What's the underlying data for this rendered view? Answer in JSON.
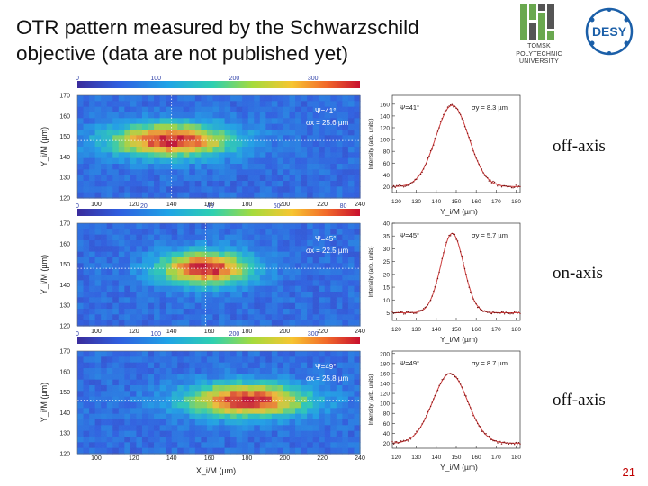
{
  "slide": {
    "title": "OTR pattern measured by the Schwarzschild objective (data are not published yet)",
    "slide_number": "21",
    "logos": {
      "tpu_lines": [
        "TOMSK",
        "POLYTECHNIC",
        "UNIVERSITY"
      ],
      "desy_text": "DESY"
    },
    "row_labels": [
      "off-axis",
      "on-axis",
      "off-axis"
    ]
  },
  "colors": {
    "accent_red": "#c00000",
    "profile_line": "#d04040",
    "profile_points": "#7a1010",
    "grid_dotted": "#ffffff",
    "tpu_green": "#6aa84f",
    "desy_blue": "#1b5fa8"
  },
  "axes_text": {
    "image_y_label": "Y_i/M (µm)",
    "image_x_label": "X_i/M (µm)",
    "profile_y_label": "Intensity (arb. units)",
    "profile_x_label": "Y_i/M (µm)",
    "image_x_ticks": [
      "100",
      "120",
      "140",
      "160",
      "180",
      "200",
      "220",
      "240"
    ],
    "image_y_ticks": [
      "170",
      "160",
      "150",
      "140",
      "130",
      "120"
    ],
    "profile_x_ticks": [
      "120",
      "130",
      "140",
      "150",
      "160",
      "170",
      "180"
    ]
  },
  "chart_data": [
    {
      "type": "heatmap",
      "title": "off-axis image",
      "psi": "Ψ=41°",
      "sigma": "σx = 25.6 µm",
      "colorbar_ticks": [
        "0",
        "100",
        "200",
        "300"
      ],
      "colorbar_range": [
        0,
        360
      ],
      "xlim": [
        90,
        240
      ],
      "ylim": [
        120,
        170
      ],
      "center": [
        140,
        148
      ]
    },
    {
      "type": "line",
      "title": "off-axis profile",
      "psi": "Ψ=41°",
      "sigma": "σy = 8.3 µm",
      "y_ticks": [
        "160",
        "140",
        "120",
        "100",
        "80",
        "60",
        "40",
        "20"
      ],
      "ylim": [
        10,
        175
      ],
      "xlim": [
        118,
        182
      ],
      "peak": 158,
      "center": 148,
      "baseline": 20,
      "width": 8.3
    },
    {
      "type": "heatmap",
      "title": "on-axis image",
      "psi": "Ψ=45°",
      "sigma": "σx = 22.5 µm",
      "colorbar_ticks": [
        "0",
        "20",
        "40",
        "60",
        "80"
      ],
      "colorbar_range": [
        0,
        85
      ],
      "xlim": [
        90,
        240
      ],
      "ylim": [
        120,
        170
      ],
      "center": [
        158,
        148
      ]
    },
    {
      "type": "line",
      "title": "on-axis profile",
      "psi": "Ψ=45°",
      "sigma": "σy = 5.7 µm",
      "y_ticks": [
        "40",
        "35",
        "30",
        "25",
        "20",
        "15",
        "10",
        "5"
      ],
      "ylim": [
        2,
        40
      ],
      "xlim": [
        118,
        182
      ],
      "peak": 36,
      "center": 148,
      "baseline": 5,
      "width": 5.7
    },
    {
      "type": "heatmap",
      "title": "off-axis image",
      "psi": "Ψ=49°",
      "sigma": "σx = 25.8 µm",
      "colorbar_ticks": [
        "0",
        "100",
        "200",
        "300"
      ],
      "colorbar_range": [
        0,
        360
      ],
      "xlim": [
        90,
        240
      ],
      "ylim": [
        120,
        170
      ],
      "center": [
        180,
        146
      ]
    },
    {
      "type": "line",
      "title": "off-axis profile",
      "psi": "Ψ=49°",
      "sigma": "σy = 8.7 µm",
      "y_ticks": [
        "200",
        "180",
        "160",
        "140",
        "120",
        "100",
        "80",
        "60",
        "40",
        "20"
      ],
      "ylim": [
        10,
        205
      ],
      "xlim": [
        118,
        182
      ],
      "peak": 160,
      "center": 147,
      "baseline": 20,
      "width": 8.7
    }
  ]
}
